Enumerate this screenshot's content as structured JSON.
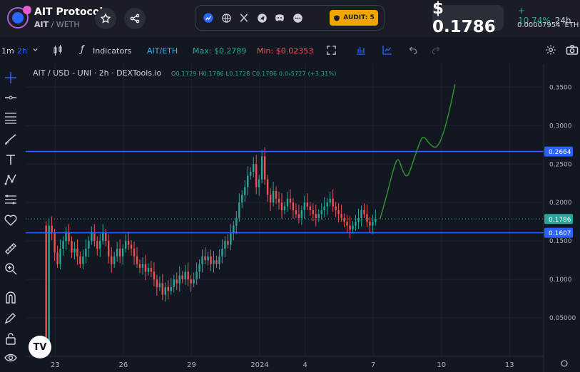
{
  "token": {
    "name": "AIT Protocol",
    "symbol": "AIT",
    "quote": "/ WETH"
  },
  "header": {
    "price": "$ 0.1786",
    "change": "+ 10.74%",
    "change_period": "24h",
    "eth_price": "0.00007954",
    "eth_label": "ETH",
    "audit_label": "AUDIT: 5"
  },
  "social_icons": [
    "chart-icon",
    "globe-icon",
    "x-icon",
    "telegram-icon",
    "discord-icon",
    "more-icon"
  ],
  "toolbar": {
    "interval_1m": "1m",
    "interval_2h": "2h",
    "indicators": "Indicators",
    "pair": "AIT/ETH",
    "max": "Max: $0.2789",
    "min": "Min: $0.02353"
  },
  "legend": {
    "title": "AIT / USD - UNI · 2h · DEXTools.io",
    "o_label": "O",
    "o": "0.1729",
    "h_label": "H",
    "h": "0.1786",
    "l_label": "L",
    "l": "0.1728",
    "c_label": "C",
    "c": "0.1786",
    "chg": "0.0₉5727 (+3.31%)"
  },
  "colors": {
    "up": "#26a69a",
    "down": "#ef5350",
    "hline": "#2962ff",
    "projection": "#2f8f2f"
  },
  "chart_data": {
    "type": "candlestick",
    "y_ticks": [
      "0.3500",
      "0.3000",
      "0.2500",
      "0.2000",
      "0.1500",
      "0.1000",
      "0.05000"
    ],
    "y_tick_values": [
      0.35,
      0.3,
      0.25,
      0.2,
      0.15,
      0.1,
      0.05
    ],
    "x_ticks": [
      "23",
      "26",
      "29",
      "2024",
      "4",
      "7",
      "10",
      "13"
    ],
    "x_tick_values": [
      0,
      3,
      6,
      9,
      11,
      14,
      17,
      20
    ],
    "ylim": [
      0.0,
      0.38
    ],
    "xlim": [
      -1.3,
      21.5
    ],
    "hlines": [
      {
        "value": 0.2664,
        "label": "0.2664"
      },
      {
        "value": 0.1607,
        "label": "0.1607"
      }
    ],
    "last_price": {
      "value": 0.1786,
      "label": "0.1786"
    },
    "closes": [
      0.02,
      0.17,
      0.16,
      0.135,
      0.12,
      0.14,
      0.15,
      0.16,
      0.15,
      0.135,
      0.14,
      0.13,
      0.12,
      0.13,
      0.14,
      0.15,
      0.16,
      0.15,
      0.14,
      0.15,
      0.16,
      0.15,
      0.13,
      0.12,
      0.13,
      0.14,
      0.13,
      0.14,
      0.15,
      0.145,
      0.14,
      0.13,
      0.12,
      0.115,
      0.12,
      0.11,
      0.115,
      0.11,
      0.1,
      0.09,
      0.095,
      0.08,
      0.09,
      0.085,
      0.09,
      0.1,
      0.095,
      0.105,
      0.1,
      0.11,
      0.1,
      0.095,
      0.1,
      0.11,
      0.12,
      0.13,
      0.125,
      0.13,
      0.12,
      0.125,
      0.12,
      0.13,
      0.14,
      0.15,
      0.145,
      0.16,
      0.17,
      0.18,
      0.2,
      0.21,
      0.22,
      0.235,
      0.24,
      0.25,
      0.22,
      0.23,
      0.26,
      0.23,
      0.21,
      0.2,
      0.215,
      0.205,
      0.2,
      0.19,
      0.195,
      0.205,
      0.2,
      0.19,
      0.185,
      0.18,
      0.19,
      0.2,
      0.195,
      0.19,
      0.185,
      0.18,
      0.185,
      0.19,
      0.195,
      0.2,
      0.205,
      0.195,
      0.19,
      0.185,
      0.18,
      0.175,
      0.17,
      0.165,
      0.17,
      0.175,
      0.18,
      0.19,
      0.185,
      0.175,
      0.17,
      0.175,
      0.1786
    ],
    "projection": [
      [
        14.3,
        0.1786
      ],
      [
        14.6,
        0.21
      ],
      [
        14.9,
        0.245
      ],
      [
        15.1,
        0.26
      ],
      [
        15.3,
        0.24
      ],
      [
        15.5,
        0.232
      ],
      [
        15.7,
        0.248
      ],
      [
        16.0,
        0.275
      ],
      [
        16.2,
        0.288
      ],
      [
        16.5,
        0.275
      ],
      [
        16.8,
        0.27
      ],
      [
        17.1,
        0.29
      ],
      [
        17.4,
        0.325
      ],
      [
        17.6,
        0.354
      ]
    ]
  }
}
